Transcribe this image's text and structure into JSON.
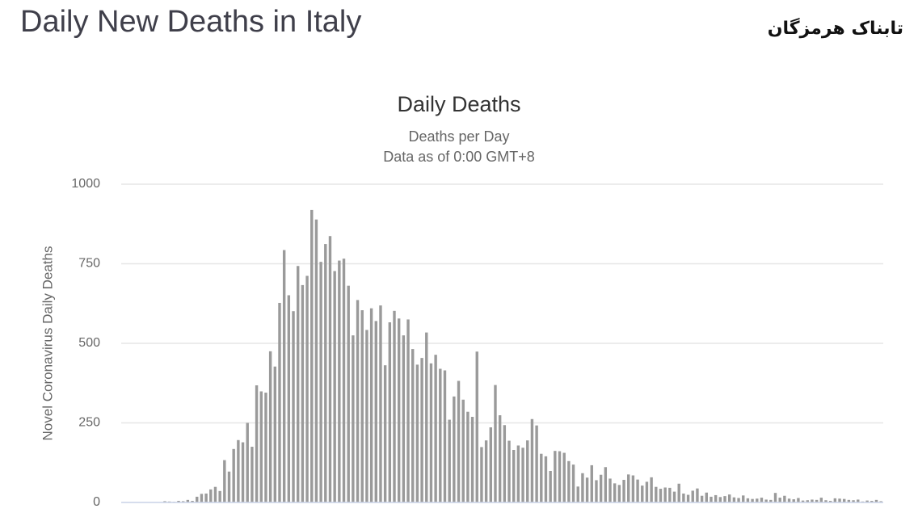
{
  "page_heading": "Daily New Deaths in Italy",
  "logo": "تابناک هرمزگان",
  "chart_data": {
    "type": "bar",
    "title": "Daily Deaths",
    "subtitle": "Deaths per Day",
    "subtitle2": "Data as of 0:00 GMT+8",
    "y_label": "Novel Coronavirus Daily Deaths",
    "categories": [
      null,
      null,
      null,
      null,
      null,
      null,
      null,
      null,
      null,
      null,
      null,
      null,
      null,
      null,
      null,
      null,
      null,
      null,
      null,
      null,
      null,
      null,
      null,
      null,
      null,
      null,
      null,
      null,
      null,
      null,
      null,
      null,
      null,
      null,
      null,
      null,
      null,
      null,
      null,
      null,
      null,
      null,
      null,
      null,
      null,
      null,
      null,
      null,
      null,
      null,
      null,
      null,
      null,
      null,
      null,
      null,
      null,
      null,
      null,
      null,
      null,
      null,
      null,
      null,
      null,
      null,
      null,
      null,
      null,
      null,
      null,
      null,
      null,
      null,
      null,
      null,
      null,
      null,
      null,
      null,
      null,
      null,
      null,
      null,
      null,
      null,
      null,
      null,
      null,
      null,
      null,
      null,
      null,
      null,
      null,
      null,
      null,
      null,
      null,
      null,
      null,
      null,
      null,
      null,
      null,
      null,
      null,
      null,
      null,
      null,
      null,
      null,
      null,
      null,
      null,
      null,
      null,
      null,
      null,
      null,
      null,
      null,
      null,
      null,
      null,
      null,
      null,
      null,
      null,
      null,
      null,
      null,
      null,
      null,
      null,
      null,
      null,
      null,
      null,
      null,
      null,
      null,
      null,
      null,
      null,
      null,
      null,
      null,
      null,
      null,
      null,
      null,
      null,
      null,
      null,
      null,
      null,
      null,
      null,
      null,
      null,
      null,
      null,
      null,
      null,
      null
    ],
    "values": [
      0,
      0,
      0,
      0,
      0,
      0,
      1,
      1,
      0,
      4,
      3,
      2,
      5,
      4,
      8,
      5,
      18,
      27,
      28,
      41,
      49,
      36,
      133,
      97,
      168,
      196,
      189,
      250,
      175,
      368,
      349,
      345,
      475,
      427,
      627,
      793,
      651,
      601,
      743,
      683,
      712,
      919,
      889,
      756,
      812,
      837,
      727,
      760,
      766,
      681,
      525,
      636,
      604,
      542,
      610,
      570,
      619,
      431,
      566,
      602,
      578,
      525,
      575,
      482,
      433,
      454,
      534,
      437,
      464,
      420,
      415,
      260,
      333,
      382,
      323,
      285,
      269,
      474,
      174,
      195,
      236,
      369,
      274,
      243,
      194,
      165,
      179,
      172,
      195,
      262,
      242,
      153,
      145,
      99,
      162,
      161,
      156,
      130,
      119,
      50,
      92,
      78,
      117,
      70,
      87,
      111,
      75,
      60,
      55,
      71,
      88,
      85,
      72,
      53,
      65,
      79,
      49,
      43,
      47,
      46,
      34,
      59,
      28,
      24,
      37,
      44,
      21,
      31,
      18,
      23,
      17,
      20,
      25,
      16,
      14,
      22,
      13,
      11,
      12,
      15,
      9,
      8,
      30,
      15,
      21,
      12,
      10,
      14,
      6,
      7,
      9,
      8,
      15,
      7,
      5,
      13,
      12,
      11,
      8,
      7,
      9,
      3,
      6,
      5,
      8,
      4
    ],
    "color": "#9a9a9a",
    "ylim": [
      0,
      1000
    ],
    "yticks": [
      0,
      250,
      500,
      750,
      1000
    ],
    "grid": true
  }
}
